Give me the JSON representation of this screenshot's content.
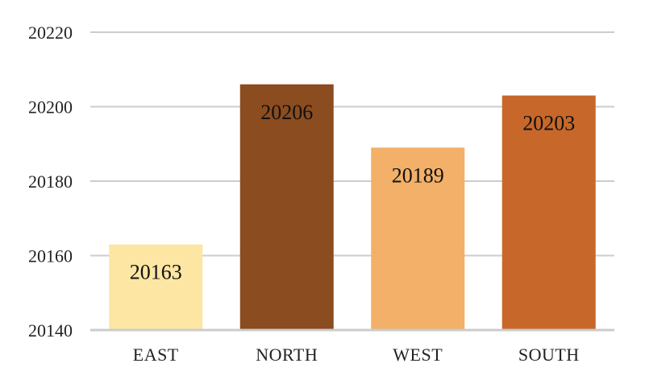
{
  "chart_data": {
    "type": "bar",
    "categories": [
      "EAST",
      "NORTH",
      "WEST",
      "SOUTH"
    ],
    "values": [
      20163,
      20206,
      20189,
      20203
    ],
    "colors": [
      "#FDE6A3",
      "#8B4C20",
      "#F2B068",
      "#C7682A"
    ],
    "gridline_color": "#CCCCCC",
    "ylim": [
      20140,
      20220
    ],
    "yticks": [
      20140,
      20160,
      20180,
      20200,
      20220
    ],
    "data_labels": true,
    "grid": true,
    "legend": "none"
  }
}
